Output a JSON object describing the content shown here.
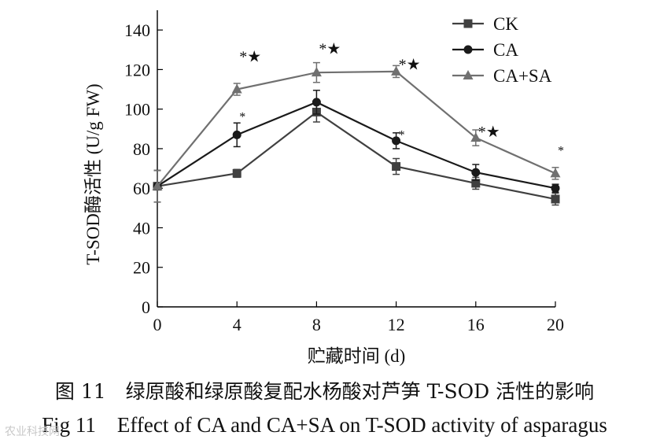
{
  "chart_data": {
    "type": "line",
    "xlabel": "贮藏时间 (d)",
    "ylabel": "T-SOD酶活性 (U/g FW)",
    "x": [
      0,
      4,
      8,
      12,
      16,
      20
    ],
    "xlim": [
      0,
      20
    ],
    "ylim": [
      0,
      150
    ],
    "xticks": [
      0,
      4,
      8,
      12,
      16,
      20
    ],
    "yticks": [
      0,
      20,
      40,
      60,
      80,
      100,
      120,
      140
    ],
    "legend_position": "top-right",
    "series": [
      {
        "name": "CK",
        "marker": "square",
        "color": "#404040",
        "values": [
          61,
          67.5,
          98.5,
          71,
          62.5,
          54.5
        ],
        "errors": [
          8,
          2,
          5,
          4,
          3,
          3
        ]
      },
      {
        "name": "CA",
        "marker": "circle",
        "color": "#1a1a1a",
        "values": [
          61,
          87,
          103.5,
          84,
          68,
          60
        ],
        "errors": [
          8,
          6,
          6,
          4,
          4,
          2
        ]
      },
      {
        "name": "CA+SA",
        "marker": "triangle",
        "color": "#707070",
        "values": [
          61,
          110,
          118.5,
          119,
          85.5,
          67.5
        ],
        "errors": [
          8,
          3,
          5,
          3,
          4,
          3
        ]
      }
    ],
    "annotations": [
      {
        "x": 4,
        "y": 124,
        "text": "*★"
      },
      {
        "x": 8,
        "y": 128,
        "text": "*★"
      },
      {
        "x": 12,
        "y": 120,
        "text": "*★"
      },
      {
        "x": 16,
        "y": 86,
        "text": "*★"
      },
      {
        "x": 4,
        "y": 94,
        "text": "*"
      },
      {
        "x": 12,
        "y": 85,
        "text": "*"
      },
      {
        "x": 20,
        "y": 77,
        "text": "*"
      }
    ]
  },
  "caption": {
    "cn": "图 11　绿原酸和绿原酸复配水杨酸对芦笋 T-SOD 活性的影响",
    "en": "Fig 11　Effect of CA and CA+SA on T-SOD activity of asparagus"
  },
  "watermark": "农业科技网"
}
